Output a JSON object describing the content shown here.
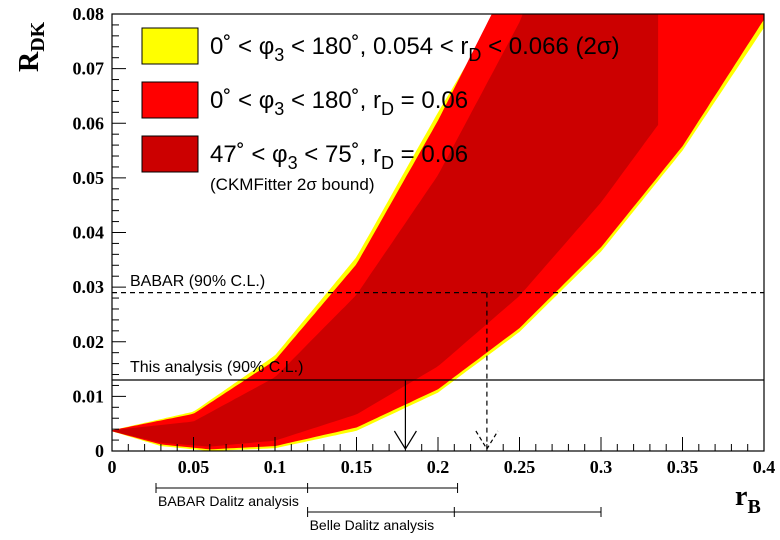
{
  "chart_data": {
    "type": "area",
    "xlabel": {
      "main": "r",
      "sub": "B"
    },
    "ylabel": {
      "main": "R",
      "sub": "DK"
    },
    "xlim": [
      0,
      0.4
    ],
    "ylim": [
      0,
      0.08
    ],
    "x_ticks": [
      "0",
      "0.05",
      "0.1",
      "0.15",
      "0.2",
      "0.25",
      "0.3",
      "0.35",
      "0.4"
    ],
    "y_ticks": [
      "0",
      "0.01",
      "0.02",
      "0.03",
      "0.04",
      "0.05",
      "0.06",
      "0.07",
      "0.08"
    ],
    "legend": [
      {
        "color": "#ffff00",
        "parts": [
          "0˚ < φ",
          "3",
          " < 180˚, 0.054 < r",
          "D",
          " < 0.066 (2σ)"
        ]
      },
      {
        "color": "#ff0000",
        "parts": [
          "0˚ < φ",
          "3",
          " < 180˚, r",
          "D",
          " = 0.06"
        ]
      },
      {
        "color": "#cc0000",
        "parts": [
          "47˚ < φ",
          "3",
          " < 75˚, r",
          "D",
          " = 0.06"
        ]
      }
    ],
    "legend_note": "(CKMFitter 2σ bound)",
    "bands": [
      {
        "name": "yellow",
        "color": "#ffff00",
        "upper": [
          [
            0,
            0.0038
          ],
          [
            0.05,
            0.0072
          ],
          [
            0.1,
            0.0175
          ],
          [
            0.15,
            0.0355
          ],
          [
            0.2,
            0.062
          ],
          [
            0.236,
            0.08
          ]
        ],
        "lower": [
          [
            0,
            0.0036
          ],
          [
            0.03,
            0.0009
          ],
          [
            0.06,
            0.0
          ],
          [
            0.1,
            0.0005
          ],
          [
            0.15,
            0.0037
          ],
          [
            0.2,
            0.0107
          ],
          [
            0.25,
            0.0218
          ],
          [
            0.3,
            0.0365
          ],
          [
            0.35,
            0.055
          ],
          [
            0.4,
            0.0775
          ]
        ]
      },
      {
        "name": "red",
        "color": "#ff0000",
        "upper": [
          [
            0,
            0.0038
          ],
          [
            0.05,
            0.0068
          ],
          [
            0.1,
            0.0166
          ],
          [
            0.15,
            0.0342
          ],
          [
            0.2,
            0.0605
          ],
          [
            0.233,
            0.08
          ]
        ],
        "lower": [
          [
            0,
            0.0036
          ],
          [
            0.03,
            0.0012
          ],
          [
            0.06,
            0.0003
          ],
          [
            0.1,
            0.0009
          ],
          [
            0.15,
            0.0043
          ],
          [
            0.2,
            0.0113
          ],
          [
            0.25,
            0.0225
          ],
          [
            0.3,
            0.0373
          ],
          [
            0.35,
            0.0558
          ],
          [
            0.4,
            0.079
          ]
        ]
      },
      {
        "name": "darkred",
        "color": "#cc0000",
        "upper": [
          [
            0,
            0.0038
          ],
          [
            0.05,
            0.0054
          ],
          [
            0.1,
            0.0135
          ],
          [
            0.15,
            0.0286
          ],
          [
            0.2,
            0.0505
          ],
          [
            0.25,
            0.0785
          ],
          [
            0.252,
            0.08
          ]
        ],
        "lower": [
          [
            0,
            0.0036
          ],
          [
            0.03,
            0.0015
          ],
          [
            0.06,
            0.0008
          ],
          [
            0.1,
            0.0019
          ],
          [
            0.15,
            0.0067
          ],
          [
            0.2,
            0.0155
          ],
          [
            0.25,
            0.0284
          ],
          [
            0.3,
            0.0455
          ],
          [
            0.335,
            0.0597
          ]
        ]
      }
    ],
    "limits": [
      {
        "label": "BABAR (90% C.L.)",
        "y": 0.029,
        "x_cross": 0.23,
        "style": "dashed"
      },
      {
        "label": "This analysis (90% C.L.)",
        "y": 0.013,
        "x_cross": 0.18,
        "style": "solid"
      }
    ],
    "ranges": [
      {
        "label": "BABAR Dalitz analysis",
        "x_low": 0.027,
        "x_mid": 0.12,
        "x_high": 0.212
      },
      {
        "label": "Belle Dalitz analysis",
        "x_low": 0.12,
        "x_mid": 0.21,
        "x_high": 0.3
      }
    ]
  }
}
